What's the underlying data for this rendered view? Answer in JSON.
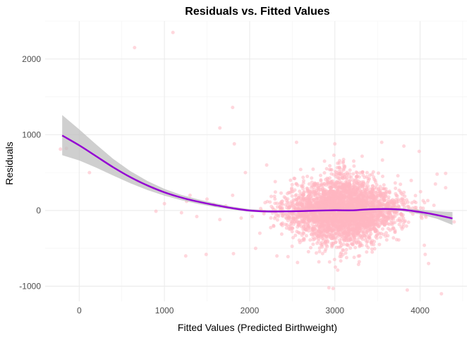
{
  "chart_data": {
    "type": "scatter",
    "title": "Residuals vs. Fitted Values",
    "xlabel": "Fitted Values (Predicted Birthweight)",
    "ylabel": "Residuals",
    "xlim": [
      -400,
      4550
    ],
    "ylim": [
      -1200,
      2500
    ],
    "x_ticks": [
      0,
      1000,
      2000,
      3000,
      4000
    ],
    "y_ticks": [
      -1000,
      0,
      1000,
      2000
    ],
    "grid": true,
    "point_color": "#ffb6c1",
    "smooth_color": "#9400d3",
    "band_color": "#bfbfbf",
    "outlier_points": [
      {
        "x": -220,
        "y": 810
      },
      {
        "x": -150,
        "y": 820
      },
      {
        "x": 120,
        "y": 500
      },
      {
        "x": 650,
        "y": 2150
      },
      {
        "x": 1100,
        "y": 2350
      },
      {
        "x": 1800,
        "y": 1360
      },
      {
        "x": 1650,
        "y": 1090
      },
      {
        "x": 1820,
        "y": 880
      },
      {
        "x": 680,
        "y": 390
      },
      {
        "x": 900,
        "y": -10
      },
      {
        "x": 1000,
        "y": 90
      },
      {
        "x": 870,
        "y": 300
      },
      {
        "x": 1200,
        "y": -30
      },
      {
        "x": 1260,
        "y": 120
      },
      {
        "x": 1300,
        "y": 200
      },
      {
        "x": 1500,
        "y": 150
      },
      {
        "x": 1580,
        "y": 80
      },
      {
        "x": 1720,
        "y": 60
      },
      {
        "x": 1800,
        "y": 200
      },
      {
        "x": 1950,
        "y": 500
      },
      {
        "x": 1250,
        "y": -600
      },
      {
        "x": 1490,
        "y": -580
      },
      {
        "x": 1810,
        "y": -570
      },
      {
        "x": 2070,
        "y": -500
      },
      {
        "x": 1380,
        "y": -80
      },
      {
        "x": 1650,
        "y": -120
      },
      {
        "x": 1900,
        "y": -100
      },
      {
        "x": 2120,
        "y": -300
      },
      {
        "x": 2450,
        "y": -610
      },
      {
        "x": 2320,
        "y": -600
      },
      {
        "x": 2930,
        "y": -1020
      },
      {
        "x": 2980,
        "y": -1030
      },
      {
        "x": 3850,
        "y": -1050
      },
      {
        "x": 4250,
        "y": -1100
      },
      {
        "x": 4100,
        "y": -700
      },
      {
        "x": 4400,
        "y": -150
      },
      {
        "x": 4300,
        "y": 300
      },
      {
        "x": 4300,
        "y": 490
      },
      {
        "x": 4200,
        "y": 480
      },
      {
        "x": 4180,
        "y": 350
      },
      {
        "x": 3990,
        "y": 780
      },
      {
        "x": 3810,
        "y": 850
      },
      {
        "x": 3000,
        "y": 880
      },
      {
        "x": 2550,
        "y": 900
      },
      {
        "x": 2200,
        "y": 600
      },
      {
        "x": 2300,
        "y": 380
      },
      {
        "x": 3550,
        "y": 900
      },
      {
        "x": 4060,
        "y": -580
      },
      {
        "x": 4050,
        "y": -460
      },
      {
        "x": 2280,
        "y": -200
      }
    ],
    "cloud": {
      "n": 3300,
      "x_center": 3100,
      "x_sd": 330,
      "y_sd": 250,
      "x_range": [
        2000,
        4200
      ],
      "y_range": [
        -900,
        800
      ]
    },
    "smooth_line": [
      {
        "x": -200,
        "y": 990,
        "lo": 730,
        "hi": 1260
      },
      {
        "x": 0,
        "y": 860,
        "lo": 660,
        "hi": 1070
      },
      {
        "x": 200,
        "y": 715,
        "lo": 565,
        "hi": 870
      },
      {
        "x": 400,
        "y": 570,
        "lo": 460,
        "hi": 680
      },
      {
        "x": 600,
        "y": 440,
        "lo": 360,
        "hi": 520
      },
      {
        "x": 800,
        "y": 330,
        "lo": 270,
        "hi": 390
      },
      {
        "x": 1000,
        "y": 240,
        "lo": 195,
        "hi": 285
      },
      {
        "x": 1200,
        "y": 170,
        "lo": 135,
        "hi": 205
      },
      {
        "x": 1400,
        "y": 115,
        "lo": 85,
        "hi": 145
      },
      {
        "x": 1600,
        "y": 70,
        "lo": 45,
        "hi": 95
      },
      {
        "x": 1800,
        "y": 30,
        "lo": 10,
        "hi": 50
      },
      {
        "x": 2000,
        "y": 0,
        "lo": -18,
        "hi": 18
      },
      {
        "x": 2200,
        "y": -12,
        "lo": -28,
        "hi": 4
      },
      {
        "x": 2400,
        "y": -12,
        "lo": -25,
        "hi": 1
      },
      {
        "x": 2600,
        "y": -8,
        "lo": -20,
        "hi": 4
      },
      {
        "x": 2800,
        "y": -2,
        "lo": -13,
        "hi": 9
      },
      {
        "x": 3000,
        "y": 3,
        "lo": -8,
        "hi": 14
      },
      {
        "x": 3200,
        "y": 2,
        "lo": -9,
        "hi": 13
      },
      {
        "x": 3400,
        "y": 15,
        "lo": 3,
        "hi": 27
      },
      {
        "x": 3600,
        "y": 20,
        "lo": 5,
        "hi": 35
      },
      {
        "x": 3800,
        "y": 10,
        "lo": -10,
        "hi": 30
      },
      {
        "x": 4000,
        "y": -20,
        "lo": -50,
        "hi": 10
      },
      {
        "x": 4200,
        "y": -60,
        "lo": -110,
        "hi": -10
      },
      {
        "x": 4380,
        "y": -105,
        "lo": -190,
        "hi": -20
      }
    ]
  }
}
